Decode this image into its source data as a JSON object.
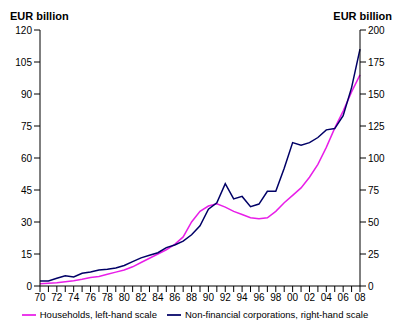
{
  "chart_data": {
    "type": "line",
    "y_label": "EUR billion",
    "y2_label": "EUR billion",
    "categories": [
      "70",
      null,
      "72",
      null,
      "74",
      null,
      "76",
      null,
      "78",
      null,
      "80",
      null,
      "82",
      null,
      "84",
      null,
      "86",
      null,
      "88",
      null,
      "90",
      null,
      "92",
      null,
      "94",
      null,
      "96",
      null,
      "98",
      null,
      "00",
      null,
      "02",
      null,
      "04",
      null,
      "06",
      null,
      "08"
    ],
    "series": [
      {
        "name": "Households, left-hand scale",
        "color": "#e81ee8",
        "axis": "y",
        "values": [
          1,
          1.3,
          1.5,
          2,
          2.5,
          3.2,
          4,
          4.5,
          5.5,
          6.5,
          7.5,
          9,
          11,
          13,
          15,
          17,
          19.5,
          23,
          30,
          35,
          37.5,
          38.5,
          37,
          35,
          33.5,
          32,
          31.5,
          32,
          35,
          39,
          42.5,
          46,
          51,
          57,
          65,
          74,
          82,
          91,
          99
        ]
      },
      {
        "name": "Non-financial corporations, right-hand scale",
        "color": "#000066",
        "axis": "y2",
        "values": [
          4,
          4,
          6,
          8,
          7,
          10,
          11,
          12.5,
          13,
          14,
          16,
          19,
          22,
          24,
          26,
          30,
          32,
          35,
          40,
          47,
          60,
          65,
          80,
          68,
          70,
          62,
          64,
          74,
          74,
          92,
          112,
          110,
          112,
          116,
          122,
          123,
          133,
          155,
          185
        ]
      }
    ],
    "ylim": [
      0,
      120
    ],
    "yticks": [
      0,
      15,
      30,
      45,
      60,
      75,
      90,
      105,
      120
    ],
    "y2lim": [
      0,
      200
    ],
    "y2ticks": [
      0,
      25,
      50,
      75,
      100,
      125,
      150,
      175,
      200
    ],
    "grid": false,
    "legend": "bottom"
  }
}
